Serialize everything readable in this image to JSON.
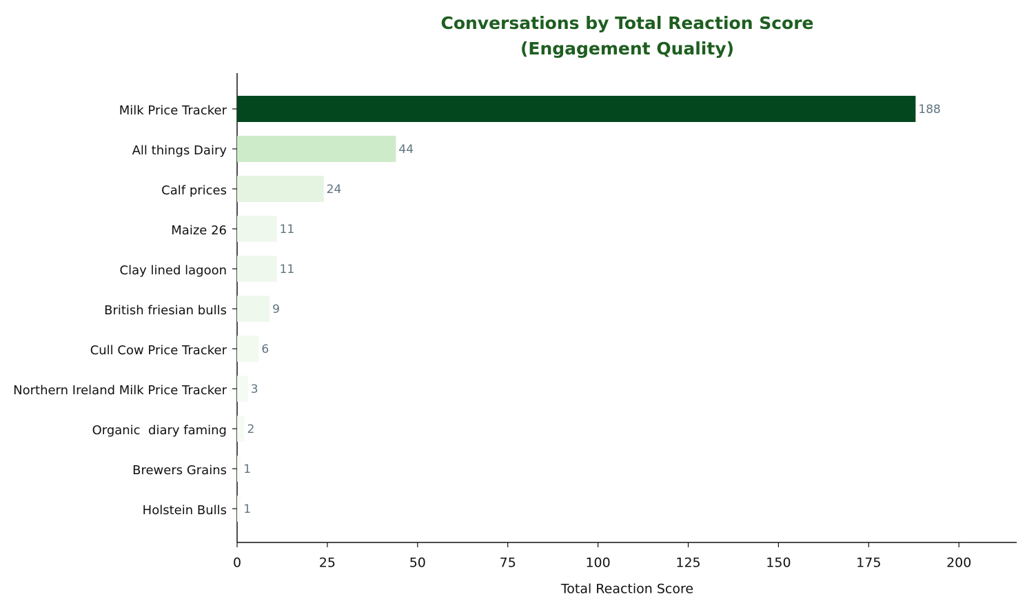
{
  "chart_data": {
    "type": "barh",
    "title": "Conversations by Total Reaction Score",
    "subtitle": "(Engagement Quality)",
    "x_label": "Total Reaction Score",
    "categories": [
      "Milk Price Tracker",
      "All things Dairy",
      "Calf prices",
      "Maize 26",
      "Clay lined lagoon",
      "British friesian bulls",
      "Cull Cow Price Tracker",
      "Northern Ireland Milk Price Tracker",
      "Organic  diary faming",
      "Brewers Grains",
      "Holstein Bulls"
    ],
    "values": [
      188,
      44,
      24,
      11,
      11,
      9,
      6,
      3,
      2,
      1,
      1
    ],
    "colors": [
      "#03471f",
      "#cdebc9",
      "#e4f4e0",
      "#eef8ec",
      "#eef8ec",
      "#eff8ec",
      "#f2faf0",
      "#f4fbf2",
      "#f5fbf3",
      "#f7fcf5",
      "#f7fcf5"
    ],
    "xlim": [
      0,
      216
    ],
    "xticks": [
      0,
      25,
      50,
      75,
      100,
      125,
      150,
      175,
      200
    ]
  }
}
